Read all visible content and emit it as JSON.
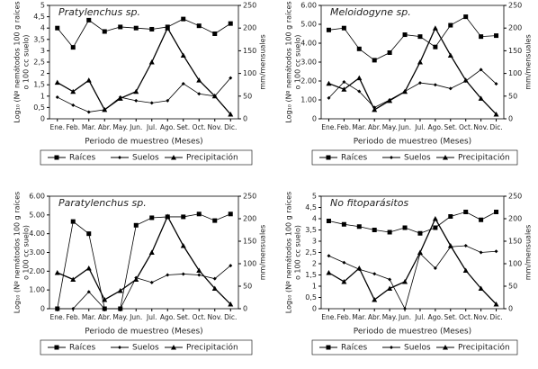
{
  "chart_data": [
    {
      "type": "line",
      "title": "Pratylenchus sp.",
      "ylabel": [
        "Log₁₀ (Nº nemátodos 100 g raíces",
        "o 100 cc suelo)"
      ],
      "y2label": "mm/mensuales",
      "xlabel": "Periodo de muestreo (Meses)",
      "categories": [
        "Ene.",
        "Feb.",
        "Mar.",
        "Abr.",
        "May.",
        "Jun.",
        "Jul.",
        "Ago.",
        "Set.",
        "Oct.",
        "Nov.",
        "Dic."
      ],
      "ylim": [
        0,
        5
      ],
      "yticks": [
        0,
        {
          "value": 0.5,
          "label": "0,5"
        },
        1,
        {
          "value": 1.5,
          "label": "1,5"
        },
        2,
        {
          "value": 2.5,
          "label": "2,5"
        },
        3,
        {
          "value": 3.5,
          "label": "3,5"
        },
        4,
        {
          "value": 4.5,
          "label": "4,5"
        },
        5
      ],
      "y2lim": [
        0,
        250
      ],
      "y2ticks": [
        0,
        50,
        100,
        150,
        200,
        250
      ],
      "series": [
        {
          "name": "Raíces",
          "color": "#000000",
          "marker": "square",
          "values": [
            4.0,
            3.15,
            4.35,
            3.85,
            4.05,
            4.0,
            3.95,
            4.05,
            4.4,
            4.1,
            3.75,
            4.2
          ]
        },
        {
          "name": "Suelos",
          "color": "#000000",
          "marker": "diamond",
          "values": [
            0.95,
            0.6,
            0.3,
            0.4,
            0.95,
            0.8,
            0.7,
            0.8,
            1.55,
            1.1,
            1.0,
            1.8
          ]
        },
        {
          "name": "Precipitación",
          "color": "#000000",
          "marker": "triangle",
          "axis": "y2",
          "values": [
            80,
            60,
            85,
            20,
            45,
            60,
            125,
            200,
            140,
            85,
            50,
            10
          ]
        }
      ]
    },
    {
      "type": "line",
      "title": "Meloidogyne sp.",
      "ylabel": [
        "Log₁₀ (Nº nemátodos 100 g raíces",
        "o 100 cc suelo)"
      ],
      "y2label": "mm/mensuales",
      "xlabel": "Periodo de muestreo (Meses)",
      "categories": [
        "Ene.",
        "Feb.",
        "Mar.",
        "Abr.",
        "May.",
        "Jun.",
        "Jul.",
        "Ago.",
        "Set.",
        "Oct.",
        "Nov.",
        "Dic."
      ],
      "ylim": [
        0,
        6
      ],
      "yticks": [
        0,
        {
          "value": 1,
          "label": "1.00"
        },
        {
          "value": 2,
          "label": "2.00"
        },
        {
          "value": 3,
          "label": "3.00"
        },
        {
          "value": 4,
          "label": "4.00"
        },
        {
          "value": 5,
          "label": "5.00"
        },
        {
          "value": 6,
          "label": "6.00"
        }
      ],
      "y2lim": [
        0,
        250
      ],
      "y2ticks": [
        0,
        50,
        100,
        150,
        200,
        250
      ],
      "series": [
        {
          "name": "Raíces",
          "color": "#000000",
          "marker": "square",
          "values": [
            4.7,
            4.8,
            3.7,
            3.1,
            3.5,
            4.45,
            4.35,
            3.8,
            4.95,
            5.4,
            4.35,
            4.4
          ]
        },
        {
          "name": "Suelos",
          "color": "#000000",
          "marker": "diamond",
          "values": [
            1.1,
            1.95,
            1.45,
            0.6,
            1.0,
            1.45,
            1.9,
            1.8,
            1.6,
            2.0,
            2.6,
            1.85
          ]
        },
        {
          "name": "Precipitación",
          "color": "#000000",
          "marker": "triangle",
          "axis": "y2",
          "values": [
            78,
            65,
            90,
            20,
            40,
            60,
            125,
            200,
            140,
            85,
            45,
            10
          ]
        }
      ]
    },
    {
      "type": "line",
      "title": "Paratylenchus sp.",
      "ylabel": [
        "Log₁₀ (Nº nemátodos 100 g raíces",
        "o 100 cc suelo)"
      ],
      "y2label": "mm/mensuales",
      "xlabel": "Periodo de muestreo (Meses)",
      "categories": [
        "Ene.",
        "Feb.",
        "Mar.",
        "Abr.",
        "May.",
        "Jun.",
        "Jul.",
        "Ago.",
        "Set.",
        "Oct.",
        "Nov.",
        "Dic."
      ],
      "ylim": [
        0,
        6
      ],
      "yticks": [
        0,
        {
          "value": 1,
          "label": "1.00"
        },
        {
          "value": 2,
          "label": "2.00"
        },
        {
          "value": 3,
          "label": "3.00"
        },
        {
          "value": 4,
          "label": "4.00"
        },
        {
          "value": 5,
          "label": "5.00"
        },
        {
          "value": 6,
          "label": "6.00"
        }
      ],
      "y2lim": [
        0,
        250
      ],
      "y2ticks": [
        0,
        50,
        100,
        150,
        200,
        250
      ],
      "series": [
        {
          "name": "Raíces",
          "color": "#000000",
          "marker": "square",
          "values": [
            0,
            4.65,
            4.0,
            0,
            0,
            4.45,
            4.85,
            4.9,
            4.9,
            5.05,
            4.7,
            5.05
          ]
        },
        {
          "name": "Suelos",
          "color": "#000000",
          "marker": "diamond",
          "values": [
            0,
            0,
            0.9,
            0,
            0,
            1.65,
            1.4,
            1.8,
            1.85,
            1.8,
            1.6,
            2.3
          ]
        },
        {
          "name": "Precipitación",
          "color": "#000000",
          "marker": "triangle",
          "axis": "y2",
          "values": [
            80,
            65,
            90,
            20,
            40,
            65,
            125,
            205,
            140,
            85,
            45,
            10
          ]
        }
      ]
    },
    {
      "type": "line",
      "title": "No fitoparásitos",
      "ylabel": [
        "Log₁₀ (Nº nemátodos 100 g raíces",
        "o 100 cc suelo)"
      ],
      "y2label": "mm/mensuales",
      "xlabel": "Periodo de muestreo (Meses)",
      "categories": [
        "Ene.",
        "Feb.",
        "Mar.",
        "Abr.",
        "May.",
        "Jun.",
        "Jul.",
        "Ago.",
        "Set.",
        "Oct.",
        "Nov.",
        "Dic."
      ],
      "ylim": [
        0,
        5
      ],
      "yticks": [
        0,
        {
          "value": 0.5,
          "label": "0,5"
        },
        1,
        {
          "value": 1.5,
          "label": "1,5"
        },
        2,
        {
          "value": 2.5,
          "label": "2,5"
        },
        3,
        {
          "value": 3.5,
          "label": "3,5"
        },
        4,
        {
          "value": 4.5,
          "label": "4,5"
        },
        5
      ],
      "y2lim": [
        0,
        250
      ],
      "y2ticks": [
        0,
        50,
        100,
        150,
        200,
        250
      ],
      "series": [
        {
          "name": "Raíces",
          "color": "#000000",
          "marker": "square",
          "values": [
            3.9,
            3.75,
            3.65,
            3.5,
            3.4,
            3.6,
            3.35,
            3.6,
            4.1,
            4.3,
            3.95,
            4.3
          ]
        },
        {
          "name": "Suelos",
          "color": "#000000",
          "marker": "diamond",
          "values": [
            2.35,
            2.05,
            1.75,
            1.55,
            1.3,
            0,
            2.45,
            1.8,
            2.75,
            2.8,
            2.5,
            2.55
          ]
        },
        {
          "name": "Precipitación",
          "color": "#000000",
          "marker": "triangle",
          "axis": "y2",
          "values": [
            80,
            60,
            90,
            20,
            45,
            60,
            125,
            200,
            140,
            85,
            45,
            10
          ]
        }
      ]
    }
  ]
}
